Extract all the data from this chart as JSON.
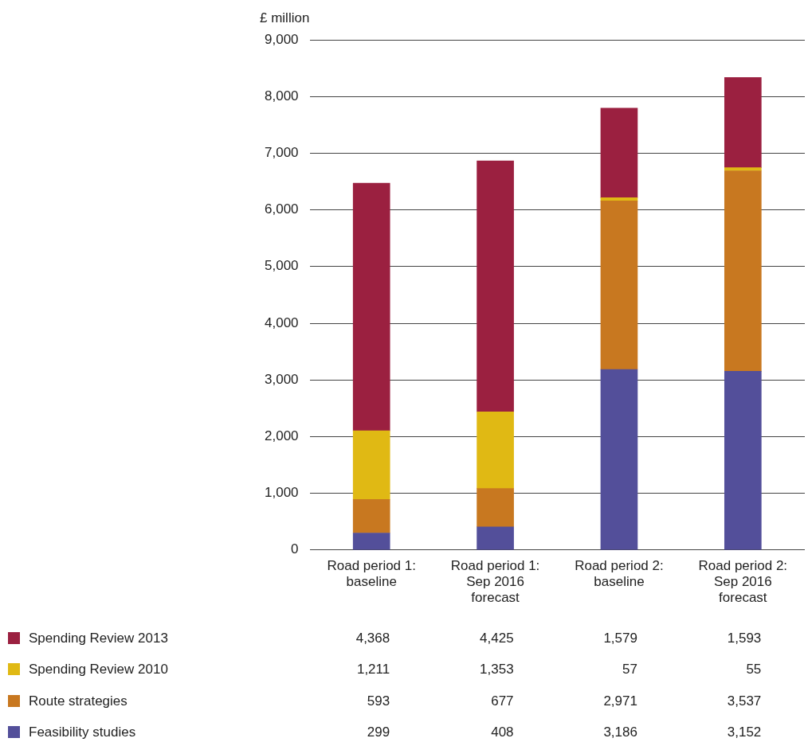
{
  "chart_data": {
    "type": "bar",
    "stacked": true,
    "ylabel": "£ million",
    "categories": [
      "Road period 1: baseline",
      "Road period 1: Sep 2016 forecast",
      "Road period 2: baseline",
      "Road period 2: Sep 2016 forecast"
    ],
    "series": [
      {
        "name": "Feasibility studies",
        "color": "#534f9a",
        "values": [
          299,
          408,
          3186,
          3152
        ],
        "value_labels": [
          "299",
          "408",
          "3,186",
          "3,152"
        ]
      },
      {
        "name": "Route strategies",
        "color": "#c87820",
        "values": [
          593,
          677,
          2971,
          3537
        ],
        "value_labels": [
          "593",
          "677",
          "2,971",
          "3,537"
        ]
      },
      {
        "name": "Spending Review 2010",
        "color": "#e0b914",
        "values": [
          1211,
          1353,
          57,
          55
        ],
        "value_labels": [
          "1,211",
          "1,353",
          "57",
          "55"
        ]
      },
      {
        "name": "Spending Review 2013",
        "color": "#9b2040",
        "values": [
          4368,
          4425,
          1579,
          1593
        ],
        "value_labels": [
          "4,368",
          "4,425",
          "1,579",
          "1,593"
        ]
      }
    ],
    "ylim": [
      0,
      9000
    ],
    "yticks": [
      {
        "value": 0,
        "label": "0"
      },
      {
        "value": 1000,
        "label": "1,000"
      },
      {
        "value": 2000,
        "label": "2,000"
      },
      {
        "value": 3000,
        "label": "3,000"
      },
      {
        "value": 4000,
        "label": "4,000"
      },
      {
        "value": 5000,
        "label": "5,000"
      },
      {
        "value": 6000,
        "label": "6,000"
      },
      {
        "value": 7000,
        "label": "7,000"
      },
      {
        "value": 8000,
        "label": "8,000"
      },
      {
        "value": 9000,
        "label": "9,000"
      }
    ],
    "grid": "y",
    "legend": "bottom"
  }
}
